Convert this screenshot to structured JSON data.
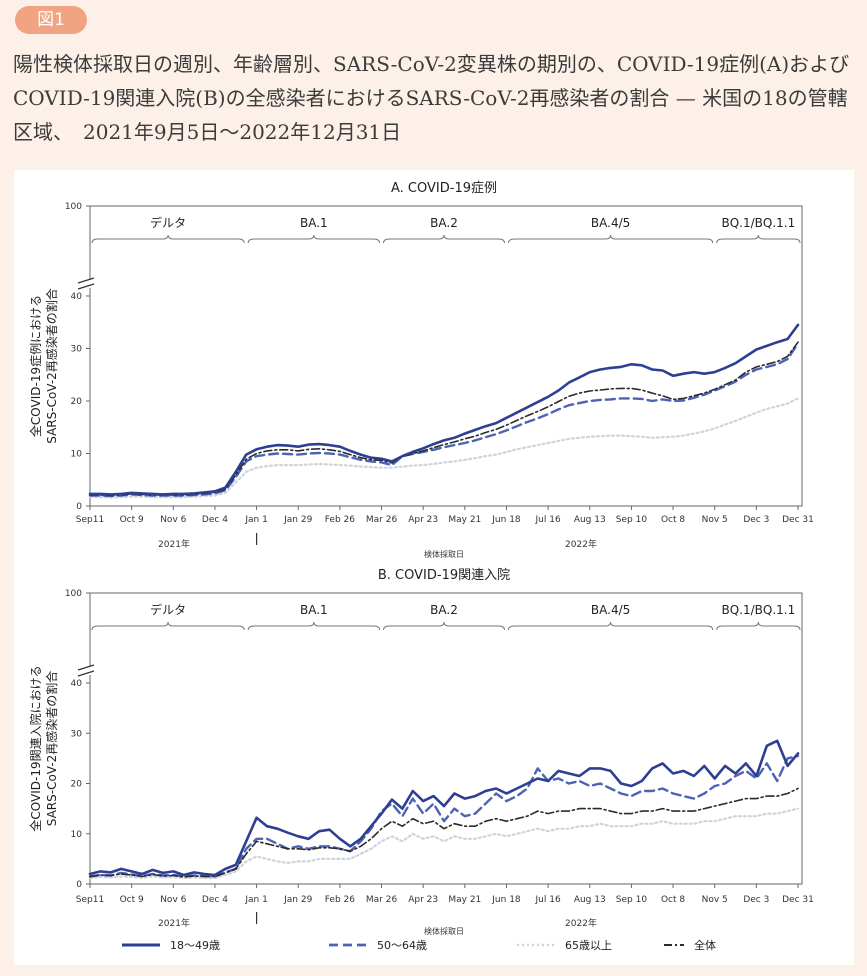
{
  "figure_label": "図1",
  "caption": "陽性検体採取日の週別、年齢層別、SARS-CoV-2変異株の期別の、COVID-19症例(A)およびCOVID-19関連入院(B)の全感染者におけるSARS-CoV-2再感染者の割合 — 米国の18の管轄区域、　2021年9月5日～2022年12月31日",
  "colors": {
    "age_18_49": "#2e3f93",
    "age_50_64": "#4d63b4",
    "age_65_plus": "#cfd3dc",
    "overall": "#2b2b2b",
    "badge": "#f0a482",
    "background": "#fcf0e8"
  },
  "x_tick_labels": [
    "Sep11",
    "Oct 9",
    "Nov 6",
    "Dec 4",
    "Jan 1",
    "Jan 29",
    "Feb 26",
    "Mar 26",
    "Apr 23",
    "May 21",
    "Jun 18",
    "Jul 16",
    "Aug 13",
    "Sep 10",
    "Oct 8",
    "Nov 5",
    "Dec 3",
    "Dec 31"
  ],
  "year_labels": [
    "2021年",
    "2022年"
  ],
  "xlabel": "検体採取日",
  "variant_periods": [
    "デルタ",
    "BA.1",
    "BA.2",
    "BA.4/5",
    "BQ.1/BQ.1.1"
  ],
  "legend": [
    "18～49歳",
    "50～64歳",
    "65歳以上",
    "全体"
  ],
  "chart_data": [
    {
      "type": "line",
      "title": "A. COVID-19症例",
      "ylabel_line1": "全COVID-19症例における",
      "ylabel_line2": "SARS-CoV-2再感染者の割合",
      "y_ticks": [
        0,
        10,
        20,
        30,
        40
      ],
      "y_top_tick": 100,
      "ylim": [
        0,
        100
      ],
      "x": [
        "2021-09-11",
        "2021-09-18",
        "2021-09-25",
        "2021-10-02",
        "2021-10-09",
        "2021-10-16",
        "2021-10-23",
        "2021-10-30",
        "2021-11-06",
        "2021-11-13",
        "2021-11-20",
        "2021-11-27",
        "2021-12-04",
        "2021-12-11",
        "2021-12-18",
        "2021-12-25",
        "2022-01-01",
        "2022-01-08",
        "2022-01-15",
        "2022-01-22",
        "2022-01-29",
        "2022-02-05",
        "2022-02-12",
        "2022-02-19",
        "2022-02-26",
        "2022-03-05",
        "2022-03-12",
        "2022-03-19",
        "2022-03-26",
        "2022-04-02",
        "2022-04-09",
        "2022-04-16",
        "2022-04-23",
        "2022-04-30",
        "2022-05-07",
        "2022-05-14",
        "2022-05-21",
        "2022-05-28",
        "2022-06-04",
        "2022-06-11",
        "2022-06-18",
        "2022-06-25",
        "2022-07-02",
        "2022-07-09",
        "2022-07-16",
        "2022-07-23",
        "2022-07-30",
        "2022-08-06",
        "2022-08-13",
        "2022-08-20",
        "2022-08-27",
        "2022-09-03",
        "2022-09-10",
        "2022-09-17",
        "2022-09-24",
        "2022-10-01",
        "2022-10-08",
        "2022-10-15",
        "2022-10-22",
        "2022-10-29",
        "2022-11-05",
        "2022-11-12",
        "2022-11-19",
        "2022-11-26",
        "2022-12-03",
        "2022-12-10",
        "2022-12-17",
        "2022-12-24",
        "2022-12-31"
      ],
      "series": [
        {
          "name": "18～49歳",
          "values": [
            2.3,
            2.3,
            2.2,
            2.3,
            2.5,
            2.4,
            2.3,
            2.2,
            2.3,
            2.3,
            2.4,
            2.6,
            2.8,
            3.5,
            6.5,
            9.8,
            10.8,
            11.3,
            11.6,
            11.5,
            11.3,
            11.7,
            11.8,
            11.6,
            11.3,
            10.5,
            9.8,
            9.2,
            9.0,
            8.5,
            9.5,
            10.3,
            11.0,
            11.8,
            12.5,
            13.0,
            13.8,
            14.5,
            15.2,
            15.8,
            16.8,
            17.8,
            18.8,
            19.8,
            20.8,
            22.0,
            23.5,
            24.5,
            25.5,
            26.0,
            26.3,
            26.5,
            27.0,
            26.8,
            26.0,
            25.8,
            24.8,
            25.2,
            25.5,
            25.2,
            25.5,
            26.3,
            27.2,
            28.5,
            29.8,
            30.5,
            31.2,
            31.8,
            34.5
          ]
        },
        {
          "name": "50～64歳",
          "values": [
            2.0,
            2.0,
            1.9,
            2.0,
            2.2,
            2.1,
            2.0,
            2.0,
            2.0,
            2.0,
            2.1,
            2.2,
            2.4,
            3.0,
            5.5,
            8.5,
            9.5,
            9.8,
            10.0,
            9.9,
            9.8,
            10.0,
            10.1,
            10.0,
            9.8,
            9.3,
            8.8,
            8.5,
            8.3,
            7.8,
            9.5,
            9.9,
            10.3,
            10.7,
            11.2,
            11.6,
            12.0,
            12.5,
            13.1,
            13.7,
            14.4,
            15.2,
            16.0,
            16.7,
            17.5,
            18.4,
            19.2,
            19.6,
            20.0,
            20.2,
            20.3,
            20.5,
            20.5,
            20.4,
            20.0,
            20.3,
            20.0,
            20.1,
            20.6,
            21.2,
            22.0,
            22.8,
            23.7,
            25.0,
            26.0,
            26.5,
            27.0,
            28.0,
            31.0
          ]
        },
        {
          "name": "65歳以上",
          "values": [
            1.7,
            1.7,
            1.6,
            1.7,
            1.8,
            1.8,
            1.7,
            1.7,
            1.7,
            1.7,
            1.8,
            1.9,
            2.0,
            2.5,
            4.5,
            6.5,
            7.3,
            7.6,
            7.8,
            7.8,
            7.8,
            7.9,
            8.0,
            7.9,
            7.8,
            7.7,
            7.5,
            7.4,
            7.3,
            7.3,
            7.5,
            7.7,
            7.8,
            8.0,
            8.3,
            8.5,
            8.8,
            9.1,
            9.5,
            9.8,
            10.3,
            10.8,
            11.2,
            11.6,
            12.0,
            12.4,
            12.8,
            13.0,
            13.2,
            13.3,
            13.4,
            13.4,
            13.3,
            13.2,
            13.0,
            13.1,
            13.2,
            13.4,
            13.8,
            14.2,
            14.8,
            15.5,
            16.2,
            17.0,
            17.8,
            18.5,
            19.0,
            19.5,
            20.5
          ]
        },
        {
          "name": "全体",
          "values": [
            2.1,
            2.1,
            2.0,
            2.1,
            2.3,
            2.2,
            2.1,
            2.1,
            2.1,
            2.1,
            2.2,
            2.4,
            2.6,
            3.2,
            5.9,
            8.9,
            10.0,
            10.5,
            10.7,
            10.7,
            10.5,
            10.8,
            10.9,
            10.7,
            10.4,
            9.8,
            9.2,
            8.8,
            8.7,
            8.2,
            9.4,
            10.0,
            10.5,
            11.1,
            11.7,
            12.2,
            12.8,
            13.3,
            14.0,
            14.6,
            15.4,
            16.3,
            17.2,
            18.0,
            18.9,
            19.9,
            20.9,
            21.5,
            21.9,
            22.1,
            22.3,
            22.4,
            22.4,
            22.1,
            21.5,
            21.0,
            20.3,
            20.5,
            21.0,
            21.5,
            22.2,
            23.1,
            24.0,
            25.5,
            26.5,
            27.0,
            27.5,
            28.5,
            31.2
          ]
        }
      ]
    },
    {
      "type": "line",
      "title": "B. COVID-19関連入院",
      "ylabel_line1": "全COVID-19関連入院における",
      "ylabel_line2": "SARS-CoV-2再感染者の割合",
      "y_ticks": [
        0,
        10,
        20,
        30,
        40
      ],
      "y_top_tick": 100,
      "ylim": [
        0,
        100
      ],
      "x": [
        "2021-09-11",
        "2021-09-18",
        "2021-09-25",
        "2021-10-02",
        "2021-10-09",
        "2021-10-16",
        "2021-10-23",
        "2021-10-30",
        "2021-11-06",
        "2021-11-13",
        "2021-11-20",
        "2021-11-27",
        "2021-12-04",
        "2021-12-11",
        "2021-12-18",
        "2021-12-25",
        "2022-01-01",
        "2022-01-08",
        "2022-01-15",
        "2022-01-22",
        "2022-01-29",
        "2022-02-05",
        "2022-02-12",
        "2022-02-19",
        "2022-02-26",
        "2022-03-05",
        "2022-03-12",
        "2022-03-19",
        "2022-03-26",
        "2022-04-02",
        "2022-04-09",
        "2022-04-16",
        "2022-04-23",
        "2022-04-30",
        "2022-05-07",
        "2022-05-14",
        "2022-05-21",
        "2022-05-28",
        "2022-06-04",
        "2022-06-11",
        "2022-06-18",
        "2022-06-25",
        "2022-07-02",
        "2022-07-09",
        "2022-07-16",
        "2022-07-23",
        "2022-07-30",
        "2022-08-06",
        "2022-08-13",
        "2022-08-20",
        "2022-08-27",
        "2022-09-03",
        "2022-09-10",
        "2022-09-17",
        "2022-09-24",
        "2022-10-01",
        "2022-10-08",
        "2022-10-15",
        "2022-10-22",
        "2022-10-29",
        "2022-11-05",
        "2022-11-12",
        "2022-11-19",
        "2022-11-26",
        "2022-12-03",
        "2022-12-10",
        "2022-12-17",
        "2022-12-24",
        "2022-12-31"
      ],
      "series": [
        {
          "name": "18～49歳",
          "values": [
            2.0,
            2.5,
            2.3,
            3.0,
            2.5,
            2.0,
            2.8,
            2.2,
            2.5,
            1.8,
            2.3,
            2.0,
            1.8,
            3.0,
            3.8,
            8.5,
            13.2,
            11.5,
            11.0,
            10.2,
            9.5,
            9.0,
            10.5,
            10.8,
            9.0,
            7.5,
            9.0,
            11.5,
            14.0,
            16.8,
            15.0,
            18.5,
            16.5,
            17.5,
            15.5,
            18.0,
            17.0,
            17.5,
            18.5,
            19.0,
            18.0,
            19.0,
            20.0,
            21.0,
            20.5,
            22.5,
            22.0,
            21.5,
            23.0,
            23.0,
            22.5,
            20.0,
            19.5,
            20.5,
            23.0,
            24.0,
            22.0,
            22.5,
            21.5,
            23.5,
            21.0,
            23.5,
            22.0,
            24.0,
            21.5,
            27.5,
            28.5,
            23.5,
            26.0
          ]
        },
        {
          "name": "50～64歳",
          "values": [
            1.5,
            1.8,
            1.7,
            2.2,
            1.9,
            1.6,
            2.0,
            1.7,
            1.8,
            1.5,
            1.7,
            1.6,
            1.5,
            2.3,
            3.0,
            7.0,
            9.0,
            9.0,
            8.0,
            7.0,
            7.5,
            7.0,
            7.5,
            7.5,
            7.0,
            6.5,
            8.5,
            11.0,
            14.5,
            16.0,
            13.5,
            17.0,
            14.0,
            16.0,
            12.5,
            15.0,
            13.5,
            14.0,
            16.0,
            18.0,
            16.5,
            17.5,
            19.0,
            23.0,
            20.5,
            21.0,
            20.0,
            20.5,
            19.5,
            20.0,
            19.0,
            18.0,
            17.5,
            18.5,
            18.5,
            19.0,
            18.0,
            17.5,
            17.0,
            18.0,
            19.5,
            20.0,
            21.5,
            22.5,
            21.0,
            24.0,
            20.5,
            25.0,
            25.5
          ]
        },
        {
          "name": "65歳以上",
          "values": [
            1.2,
            1.4,
            1.3,
            1.5,
            1.4,
            1.2,
            1.5,
            1.3,
            1.4,
            1.2,
            1.3,
            1.2,
            1.2,
            1.8,
            2.5,
            4.5,
            5.5,
            5.0,
            4.5,
            4.2,
            4.5,
            4.5,
            5.0,
            5.0,
            5.0,
            5.0,
            6.0,
            7.0,
            8.5,
            9.5,
            8.5,
            10.0,
            9.0,
            9.5,
            8.5,
            9.5,
            9.0,
            9.0,
            9.5,
            10.0,
            9.5,
            10.0,
            10.5,
            11.0,
            10.5,
            11.0,
            11.0,
            11.5,
            11.5,
            12.0,
            11.5,
            11.5,
            11.5,
            12.0,
            12.0,
            12.5,
            12.0,
            12.0,
            12.0,
            12.5,
            12.5,
            13.0,
            13.5,
            13.5,
            13.5,
            14.0,
            14.0,
            14.5,
            15.0
          ]
        },
        {
          "name": "全体",
          "values": [
            1.5,
            1.8,
            1.7,
            2.0,
            1.8,
            1.5,
            1.9,
            1.6,
            1.7,
            1.4,
            1.6,
            1.5,
            1.5,
            2.2,
            3.0,
            6.0,
            8.5,
            8.0,
            7.5,
            7.0,
            7.0,
            6.8,
            7.2,
            7.2,
            7.0,
            6.5,
            7.5,
            9.0,
            11.0,
            12.5,
            11.5,
            13.0,
            12.0,
            12.5,
            11.0,
            12.0,
            11.5,
            11.5,
            12.5,
            13.0,
            12.5,
            13.0,
            13.5,
            14.5,
            14.0,
            14.5,
            14.5,
            15.0,
            15.0,
            15.0,
            14.5,
            14.0,
            14.0,
            14.5,
            14.5,
            15.0,
            14.5,
            14.5,
            14.5,
            15.0,
            15.5,
            16.0,
            16.5,
            17.0,
            17.0,
            17.5,
            17.5,
            18.0,
            19.0
          ]
        }
      ]
    }
  ]
}
